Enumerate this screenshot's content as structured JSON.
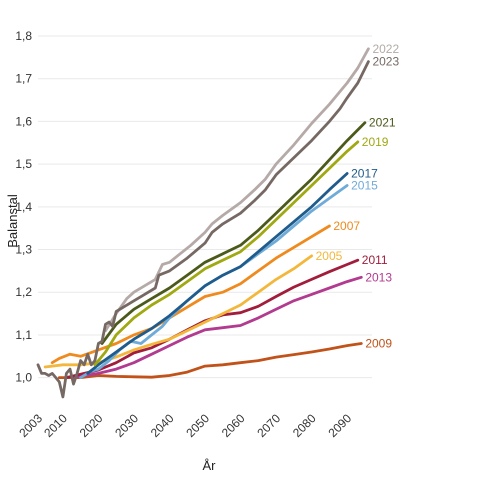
{
  "chart_data": {
    "type": "line",
    "xlabel": "År",
    "ylabel": "Balanstal",
    "xlim": [
      2003,
      2097
    ],
    "ylim": [
      0.95,
      1.8
    ],
    "x_ticks": [
      {
        "value": 2003,
        "label": "2003"
      },
      {
        "value": 2010,
        "label": "2010"
      },
      {
        "value": 2020,
        "label": "2020"
      },
      {
        "value": 2030,
        "label": "2030"
      },
      {
        "value": 2040,
        "label": "2040"
      },
      {
        "value": 2050,
        "label": "2050"
      },
      {
        "value": 2060,
        "label": "2060"
      },
      {
        "value": 2070,
        "label": "2070"
      },
      {
        "value": 2080,
        "label": "2080"
      },
      {
        "value": 2090,
        "label": "2090"
      }
    ],
    "y_ticks": [
      {
        "value": 1.0,
        "label": "1,0"
      },
      {
        "value": 1.1,
        "label": "1,1"
      },
      {
        "value": 1.2,
        "label": "1,2"
      },
      {
        "value": 1.3,
        "label": "1,3"
      },
      {
        "value": 1.4,
        "label": "1,4"
      },
      {
        "value": 1.5,
        "label": "1,5"
      },
      {
        "value": 1.6,
        "label": "1,6"
      },
      {
        "value": 1.7,
        "label": "1,7"
      },
      {
        "value": 1.8,
        "label": "1,8"
      }
    ],
    "grid": true,
    "legend": "direct labels at line ends",
    "series": [
      {
        "name": "2009",
        "color": "#c0521a",
        "x": [
          2009,
          2015,
          2020,
          2025,
          2030,
          2035,
          2040,
          2045,
          2050,
          2055,
          2060,
          2065,
          2070,
          2075,
          2080,
          2085,
          2090,
          2094
        ],
        "y": [
          1.0,
          1.0,
          1.005,
          1.003,
          1.002,
          1.001,
          1.005,
          1.013,
          1.027,
          1.03,
          1.035,
          1.04,
          1.048,
          1.054,
          1.06,
          1.067,
          1.075,
          1.08
        ]
      },
      {
        "name": "2013",
        "color": "#b23a8f",
        "x": [
          2013,
          2015,
          2020,
          2025,
          2030,
          2035,
          2040,
          2045,
          2050,
          2055,
          2060,
          2065,
          2070,
          2075,
          2080,
          2085,
          2090,
          2094
        ],
        "y": [
          1.0,
          1.003,
          1.01,
          1.02,
          1.035,
          1.055,
          1.075,
          1.095,
          1.112,
          1.117,
          1.122,
          1.14,
          1.16,
          1.18,
          1.195,
          1.21,
          1.225,
          1.235
        ]
      },
      {
        "name": "2011",
        "color": "#a11d3b",
        "x": [
          2011,
          2015,
          2020,
          2025,
          2030,
          2035,
          2040,
          2045,
          2050,
          2055,
          2060,
          2065,
          2070,
          2075,
          2080,
          2085,
          2090,
          2093
        ],
        "y": [
          1.0,
          1.008,
          1.018,
          1.035,
          1.058,
          1.07,
          1.09,
          1.112,
          1.133,
          1.147,
          1.152,
          1.167,
          1.19,
          1.212,
          1.23,
          1.248,
          1.265,
          1.275
        ]
      },
      {
        "name": "2005",
        "color": "#f3b73b",
        "x": [
          2005,
          2010,
          2015,
          2020,
          2025,
          2030,
          2035,
          2040,
          2045,
          2050,
          2055,
          2060,
          2065,
          2070,
          2075,
          2080
        ],
        "y": [
          1.025,
          1.03,
          1.03,
          1.035,
          1.048,
          1.065,
          1.078,
          1.09,
          1.11,
          1.13,
          1.15,
          1.17,
          1.2,
          1.23,
          1.255,
          1.285
        ]
      },
      {
        "name": "2007",
        "color": "#ee8a1e",
        "x": [
          2007,
          2009,
          2012,
          2015,
          2020,
          2025,
          2030,
          2035,
          2040,
          2045,
          2050,
          2055,
          2060,
          2065,
          2070,
          2075,
          2080,
          2085
        ],
        "y": [
          1.035,
          1.045,
          1.055,
          1.05,
          1.065,
          1.08,
          1.1,
          1.115,
          1.14,
          1.165,
          1.19,
          1.2,
          1.22,
          1.25,
          1.28,
          1.305,
          1.33,
          1.355
        ]
      },
      {
        "name": "2015",
        "color": "#6fabd8",
        "x": [
          2015,
          2018,
          2020,
          2023,
          2026,
          2029,
          2032,
          2035,
          2038,
          2040,
          2045,
          2050,
          2055,
          2060,
          2065,
          2070,
          2075,
          2080,
          2085,
          2090
        ],
        "y": [
          1.0,
          1.015,
          1.02,
          1.04,
          1.065,
          1.085,
          1.08,
          1.1,
          1.12,
          1.14,
          1.18,
          1.215,
          1.24,
          1.26,
          1.29,
          1.32,
          1.355,
          1.39,
          1.42,
          1.45
        ]
      },
      {
        "name": "2017",
        "color": "#1f5c8c",
        "x": [
          2017,
          2020,
          2025,
          2030,
          2035,
          2040,
          2045,
          2050,
          2055,
          2060,
          2065,
          2070,
          2075,
          2080,
          2085,
          2090
        ],
        "y": [
          1.01,
          1.03,
          1.06,
          1.09,
          1.115,
          1.145,
          1.18,
          1.215,
          1.24,
          1.26,
          1.295,
          1.33,
          1.365,
          1.4,
          1.44,
          1.478
        ]
      },
      {
        "name": "2019",
        "color": "#a0a812",
        "x": [
          2019,
          2022,
          2025,
          2030,
          2035,
          2040,
          2045,
          2050,
          2055,
          2060,
          2065,
          2070,
          2075,
          2080,
          2085,
          2090,
          2093
        ],
        "y": [
          1.03,
          1.06,
          1.1,
          1.14,
          1.17,
          1.195,
          1.225,
          1.255,
          1.275,
          1.295,
          1.33,
          1.37,
          1.41,
          1.45,
          1.49,
          1.53,
          1.552
        ]
      },
      {
        "name": "2021",
        "color": "#4b5a1b",
        "x": [
          2021,
          2025,
          2030,
          2035,
          2040,
          2045,
          2050,
          2055,
          2060,
          2065,
          2070,
          2075,
          2080,
          2085,
          2090,
          2095
        ],
        "y": [
          1.08,
          1.125,
          1.16,
          1.185,
          1.21,
          1.24,
          1.27,
          1.29,
          1.31,
          1.345,
          1.385,
          1.425,
          1.465,
          1.51,
          1.555,
          1.597
        ]
      },
      {
        "name": "2022",
        "color": "#b5aaa7",
        "x": [
          2022,
          2025,
          2028,
          2030,
          2033,
          2036,
          2038,
          2040,
          2043,
          2046,
          2050,
          2052,
          2055,
          2060,
          2064,
          2067,
          2070,
          2075,
          2080,
          2085,
          2088,
          2090,
          2093,
          2096
        ],
        "y": [
          1.11,
          1.15,
          1.185,
          1.2,
          1.215,
          1.23,
          1.265,
          1.27,
          1.29,
          1.31,
          1.34,
          1.36,
          1.38,
          1.41,
          1.44,
          1.465,
          1.5,
          1.545,
          1.595,
          1.64,
          1.67,
          1.69,
          1.725,
          1.77
        ]
      },
      {
        "name": "2023",
        "color": "#766964",
        "x": [
          2003,
          2004,
          2005,
          2006,
          2007,
          2008,
          2009,
          2010,
          2011,
          2012,
          2013,
          2014,
          2015,
          2016,
          2017,
          2018,
          2019,
          2020,
          2021,
          2022,
          2023,
          2024,
          2025,
          2027,
          2030,
          2033,
          2036,
          2037,
          2040,
          2045,
          2050,
          2052,
          2055,
          2060,
          2064,
          2067,
          2070,
          2075,
          2080,
          2085,
          2088,
          2090,
          2093,
          2096
        ],
        "y": [
          1.03,
          1.01,
          1.01,
          1.005,
          1.01,
          1.0,
          0.99,
          0.955,
          1.01,
          1.02,
          0.985,
          1.01,
          1.04,
          1.03,
          1.055,
          1.03,
          1.04,
          1.08,
          1.085,
          1.125,
          1.13,
          1.12,
          1.155,
          1.165,
          1.18,
          1.195,
          1.21,
          1.24,
          1.25,
          1.28,
          1.315,
          1.34,
          1.36,
          1.385,
          1.415,
          1.44,
          1.475,
          1.515,
          1.555,
          1.6,
          1.63,
          1.655,
          1.69,
          1.74
        ]
      }
    ]
  }
}
